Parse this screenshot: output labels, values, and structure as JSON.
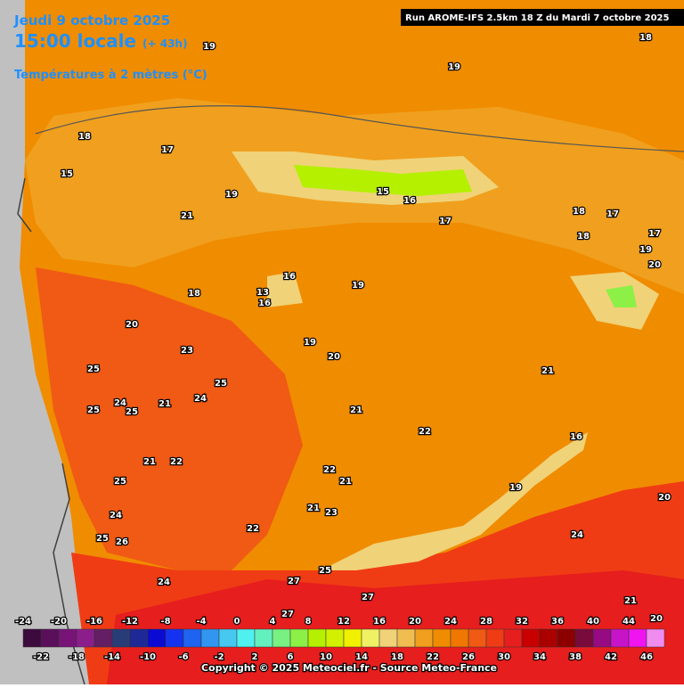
{
  "header": {
    "date": "Jeudi 9 octobre 2025",
    "time": "15:00 locale",
    "lead": "(+ 43h)",
    "field": "Températures à 2 mètres (°C)",
    "run": "Run AROME-IFS 2.5km 18 Z du Mardi 7 octobre 2025"
  },
  "map_labels": [
    19,
    19,
    18,
    18,
    17,
    15,
    21,
    19,
    15,
    16,
    17,
    18,
    17,
    18,
    17,
    19,
    20,
    19,
    18,
    16,
    13,
    16,
    20,
    19,
    20,
    21,
    23,
    25,
    24,
    25,
    24,
    25,
    25,
    21,
    21,
    22,
    16,
    21,
    22,
    22,
    21,
    19,
    20,
    25,
    24,
    21,
    23,
    25,
    26,
    22,
    24,
    24,
    27,
    25,
    27,
    21,
    27,
    20
  ],
  "legend": {
    "ticks": [
      -24,
      -22,
      -20,
      -18,
      -16,
      -14,
      -12,
      -10,
      -8,
      -6,
      -4,
      -2,
      0,
      2,
      4,
      6,
      8,
      10,
      12,
      14,
      16,
      18,
      20,
      22,
      24,
      26,
      28,
      30,
      32,
      34,
      36,
      38,
      40,
      42,
      44,
      46
    ],
    "colors": [
      "#3c0a3c",
      "#5a0f5a",
      "#781478",
      "#8c1e8c",
      "#641e64",
      "#283c78",
      "#1e2896",
      "#0a0ad2",
      "#1432f0",
      "#1e64f0",
      "#3296f0",
      "#46c8f0",
      "#50f0f0",
      "#64f0be",
      "#78f082",
      "#8cf046",
      "#b4f000",
      "#d2f000",
      "#f0f000",
      "#f0f064",
      "#f0d278",
      "#f0be50",
      "#f0a01e",
      "#f08c00",
      "#f07800",
      "#f05a14",
      "#f03c14",
      "#e61e1e",
      "#c80000",
      "#aa0000",
      "#8c0000",
      "#780a3c",
      "#960a82",
      "#c814c8",
      "#f014f0",
      "#f08cf0"
    ]
  },
  "footer": {
    "copyright": "Copyright © 2025 Meteociel.fr - Source Meteo-France"
  }
}
